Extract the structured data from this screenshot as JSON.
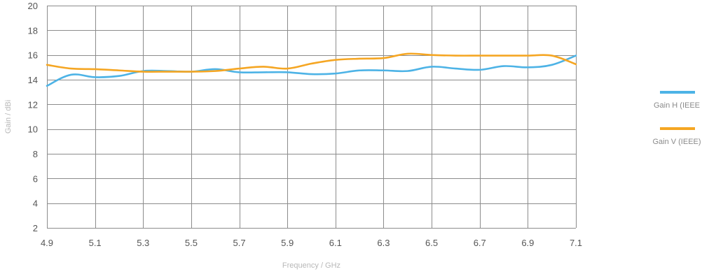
{
  "chart_data": {
    "type": "line",
    "title": "",
    "xlabel": "Frequency / GHz",
    "ylabel": "Gain / dBi",
    "xlim": [
      4.9,
      7.1
    ],
    "ylim": [
      2,
      20
    ],
    "x_ticks": [
      "4.9",
      "5.1",
      "5.3",
      "5.5",
      "5.7",
      "5.9",
      "6.1",
      "6.3",
      "6.5",
      "6.7",
      "6.9",
      "7.1"
    ],
    "y_ticks": [
      "20",
      "18",
      "16",
      "14",
      "12",
      "10",
      "8",
      "6",
      "4",
      "2"
    ],
    "grid": true,
    "legend_position": "right",
    "series": [
      {
        "name": "Gain H (IEEE",
        "color": "#4db3e6",
        "x": [
          4.9,
          5.0,
          5.1,
          5.2,
          5.3,
          5.4,
          5.5,
          5.6,
          5.7,
          5.8,
          5.9,
          6.0,
          6.1,
          6.2,
          6.3,
          6.4,
          6.5,
          6.6,
          6.7,
          6.8,
          6.9,
          7.0,
          7.1
        ],
        "values": [
          13.5,
          14.4,
          14.2,
          14.3,
          14.7,
          14.7,
          14.65,
          14.85,
          14.6,
          14.6,
          14.6,
          14.45,
          14.5,
          14.75,
          14.75,
          14.7,
          15.05,
          14.9,
          14.8,
          15.1,
          15.0,
          15.2,
          15.95
        ]
      },
      {
        "name": "Gain V (IEEE)",
        "color": "#f5a623",
        "x": [
          4.9,
          5.0,
          5.1,
          5.2,
          5.3,
          5.4,
          5.5,
          5.6,
          5.7,
          5.8,
          5.9,
          6.0,
          6.1,
          6.2,
          6.3,
          6.4,
          6.5,
          6.6,
          6.7,
          6.8,
          6.9,
          7.0,
          7.1
        ],
        "values": [
          15.2,
          14.9,
          14.85,
          14.75,
          14.65,
          14.65,
          14.65,
          14.7,
          14.9,
          15.05,
          14.9,
          15.3,
          15.6,
          15.7,
          15.75,
          16.1,
          16.0,
          15.95,
          15.95,
          15.95,
          15.95,
          15.95,
          15.25
        ]
      }
    ]
  }
}
